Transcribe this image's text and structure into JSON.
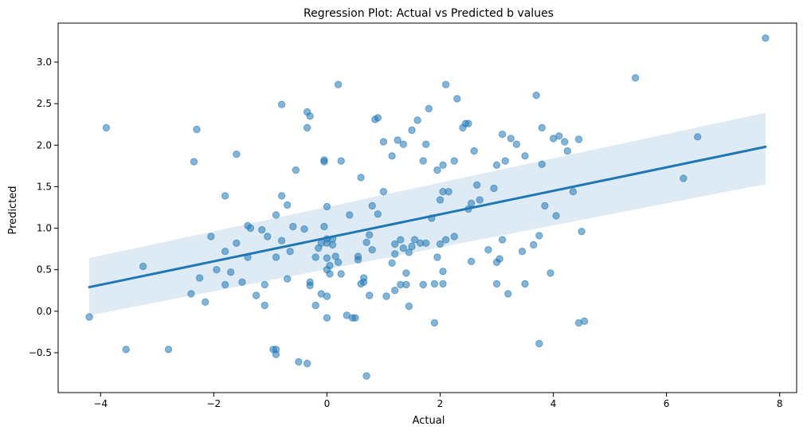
{
  "chart_data": {
    "type": "scatter",
    "title": "Regression Plot: Actual vs Predicted b values",
    "xlabel": "Actual",
    "ylabel": "Predicted",
    "xlim": [
      -4.75,
      8.3
    ],
    "ylim": [
      -0.98,
      3.47
    ],
    "x_ticks": [
      -4,
      -2,
      0,
      2,
      4,
      6,
      8
    ],
    "x_tick_labels": [
      "−4",
      "−2",
      "0",
      "2",
      "4",
      "6",
      "8"
    ],
    "y_ticks": [
      -0.5,
      0.0,
      0.5,
      1.0,
      1.5,
      2.0,
      2.5,
      3.0
    ],
    "y_tick_labels": [
      "−0.5",
      "0.0",
      "0.5",
      "1.0",
      "1.5",
      "2.0",
      "2.5",
      "3.0"
    ],
    "grid": false,
    "colors": {
      "points": "#1f77b4",
      "line": "#1f77b4",
      "band": "#1f77b4"
    },
    "regression": {
      "x": [
        -4.2,
        7.75
      ],
      "y": [
        0.29,
        1.98
      ],
      "ci_upper": [
        0.64,
        2.39
      ],
      "ci_lower": [
        -0.05,
        1.53
      ]
    },
    "points": [
      [
        -4.2,
        -0.07
      ],
      [
        -3.9,
        2.21
      ],
      [
        -3.55,
        -0.46
      ],
      [
        -3.25,
        0.54
      ],
      [
        -2.8,
        -0.46
      ],
      [
        -2.4,
        0.21
      ],
      [
        -2.35,
        1.8
      ],
      [
        -2.3,
        2.19
      ],
      [
        -2.25,
        0.4
      ],
      [
        -2.15,
        0.11
      ],
      [
        -2.05,
        0.9
      ],
      [
        -1.95,
        0.5
      ],
      [
        -1.8,
        1.39
      ],
      [
        -1.8,
        0.32
      ],
      [
        -1.8,
        0.72
      ],
      [
        -1.7,
        0.47
      ],
      [
        -1.6,
        1.89
      ],
      [
        -1.6,
        0.82
      ],
      [
        -1.5,
        0.35
      ],
      [
        -1.4,
        0.65
      ],
      [
        -1.4,
        1.03
      ],
      [
        -1.35,
        1.0
      ],
      [
        -1.25,
        0.19
      ],
      [
        -1.15,
        0.98
      ],
      [
        -1.1,
        0.07
      ],
      [
        -1.1,
        0.32
      ],
      [
        -1.05,
        0.9
      ],
      [
        -0.95,
        -0.46
      ],
      [
        -0.9,
        -0.46
      ],
      [
        -0.9,
        -0.52
      ],
      [
        -0.9,
        1.16
      ],
      [
        -0.9,
        0.65
      ],
      [
        -0.8,
        2.49
      ],
      [
        -0.8,
        1.39
      ],
      [
        -0.8,
        0.85
      ],
      [
        -0.7,
        1.28
      ],
      [
        -0.7,
        0.39
      ],
      [
        -0.65,
        0.72
      ],
      [
        -0.6,
        1.02
      ],
      [
        -0.55,
        1.7
      ],
      [
        -0.5,
        -0.61
      ],
      [
        -0.4,
        0.99
      ],
      [
        -0.35,
        2.4
      ],
      [
        -0.35,
        2.21
      ],
      [
        -0.35,
        -0.63
      ],
      [
        -0.3,
        2.35
      ],
      [
        -0.3,
        0.35
      ],
      [
        -0.3,
        0.31
      ],
      [
        -0.2,
        0.07
      ],
      [
        -0.2,
        0.65
      ],
      [
        -0.15,
        0.76
      ],
      [
        -0.1,
        0.82
      ],
      [
        -0.1,
        0.21
      ],
      [
        -0.05,
        1.02
      ],
      [
        -0.05,
        1.82
      ],
      [
        -0.05,
        1.8
      ],
      [
        0.0,
        0.82
      ],
      [
        0.0,
        0.87
      ],
      [
        0.0,
        1.26
      ],
      [
        0.0,
        0.64
      ],
      [
        0.0,
        0.5
      ],
      [
        0.0,
        0.18
      ],
      [
        0.0,
        -0.08
      ],
      [
        0.05,
        0.55
      ],
      [
        0.05,
        0.45
      ],
      [
        0.1,
        0.87
      ],
      [
        0.1,
        0.8
      ],
      [
        0.15,
        0.66
      ],
      [
        0.2,
        2.73
      ],
      [
        0.2,
        0.59
      ],
      [
        0.25,
        0.45
      ],
      [
        0.25,
        1.81
      ],
      [
        0.35,
        -0.05
      ],
      [
        0.4,
        1.16
      ],
      [
        0.45,
        -0.08
      ],
      [
        0.5,
        -0.08
      ],
      [
        0.55,
        0.66
      ],
      [
        0.55,
        0.62
      ],
      [
        0.6,
        1.61
      ],
      [
        0.6,
        0.33
      ],
      [
        0.65,
        0.4
      ],
      [
        0.65,
        0.35
      ],
      [
        0.7,
        0.83
      ],
      [
        0.7,
        -0.78
      ],
      [
        0.75,
        0.92
      ],
      [
        0.75,
        0.19
      ],
      [
        0.8,
        1.27
      ],
      [
        0.8,
        0.74
      ],
      [
        0.85,
        2.31
      ],
      [
        0.9,
        2.33
      ],
      [
        0.9,
        1.17
      ],
      [
        1.0,
        2.04
      ],
      [
        1.0,
        1.44
      ],
      [
        1.05,
        0.18
      ],
      [
        1.15,
        0.58
      ],
      [
        1.15,
        1.87
      ],
      [
        1.2,
        0.25
      ],
      [
        1.2,
        0.69
      ],
      [
        1.2,
        0.81
      ],
      [
        1.25,
        2.06
      ],
      [
        1.3,
        0.86
      ],
      [
        1.3,
        0.32
      ],
      [
        1.35,
        2.01
      ],
      [
        1.35,
        0.76
      ],
      [
        1.4,
        0.32
      ],
      [
        1.4,
        0.46
      ],
      [
        1.45,
        0.71
      ],
      [
        1.45,
        0.06
      ],
      [
        1.5,
        2.18
      ],
      [
        1.5,
        0.78
      ],
      [
        1.55,
        0.86
      ],
      [
        1.6,
        2.3
      ],
      [
        1.65,
        0.82
      ],
      [
        1.7,
        1.81
      ],
      [
        1.7,
        0.32
      ],
      [
        1.75,
        2.01
      ],
      [
        1.75,
        0.82
      ],
      [
        1.8,
        2.44
      ],
      [
        1.85,
        1.12
      ],
      [
        1.9,
        0.33
      ],
      [
        1.9,
        -0.14
      ],
      [
        1.95,
        1.7
      ],
      [
        1.95,
        0.65
      ],
      [
        2.0,
        1.34
      ],
      [
        2.0,
        0.81
      ],
      [
        2.05,
        1.44
      ],
      [
        2.05,
        0.48
      ],
      [
        2.05,
        1.76
      ],
      [
        2.05,
        0.33
      ],
      [
        2.1,
        2.73
      ],
      [
        2.1,
        0.86
      ],
      [
        2.15,
        1.44
      ],
      [
        2.25,
        1.81
      ],
      [
        2.25,
        0.9
      ],
      [
        2.3,
        2.56
      ],
      [
        2.4,
        2.21
      ],
      [
        2.45,
        2.26
      ],
      [
        2.5,
        2.26
      ],
      [
        2.5,
        1.23
      ],
      [
        2.55,
        1.3
      ],
      [
        2.55,
        0.6
      ],
      [
        2.6,
        1.93
      ],
      [
        2.65,
        1.52
      ],
      [
        2.7,
        1.34
      ],
      [
        2.85,
        0.74
      ],
      [
        2.95,
        1.48
      ],
      [
        3.0,
        1.76
      ],
      [
        3.0,
        0.33
      ],
      [
        3.0,
        0.59
      ],
      [
        3.05,
        0.63
      ],
      [
        3.1,
        2.13
      ],
      [
        3.1,
        0.86
      ],
      [
        3.15,
        1.81
      ],
      [
        3.2,
        0.21
      ],
      [
        3.25,
        2.08
      ],
      [
        3.35,
        2.01
      ],
      [
        3.45,
        0.72
      ],
      [
        3.5,
        1.87
      ],
      [
        3.5,
        0.33
      ],
      [
        3.65,
        0.8
      ],
      [
        3.7,
        2.6
      ],
      [
        3.75,
        0.91
      ],
      [
        3.75,
        -0.39
      ],
      [
        3.8,
        2.21
      ],
      [
        3.8,
        1.77
      ],
      [
        3.85,
        1.27
      ],
      [
        3.95,
        0.46
      ],
      [
        4.0,
        2.08
      ],
      [
        4.05,
        1.15
      ],
      [
        4.1,
        2.11
      ],
      [
        4.2,
        2.04
      ],
      [
        4.25,
        1.93
      ],
      [
        4.35,
        1.44
      ],
      [
        4.45,
        2.07
      ],
      [
        4.45,
        -0.14
      ],
      [
        4.5,
        0.96
      ],
      [
        4.55,
        -0.12
      ],
      [
        5.45,
        2.81
      ],
      [
        6.3,
        1.6
      ],
      [
        6.55,
        2.1
      ],
      [
        7.75,
        3.29
      ]
    ]
  }
}
